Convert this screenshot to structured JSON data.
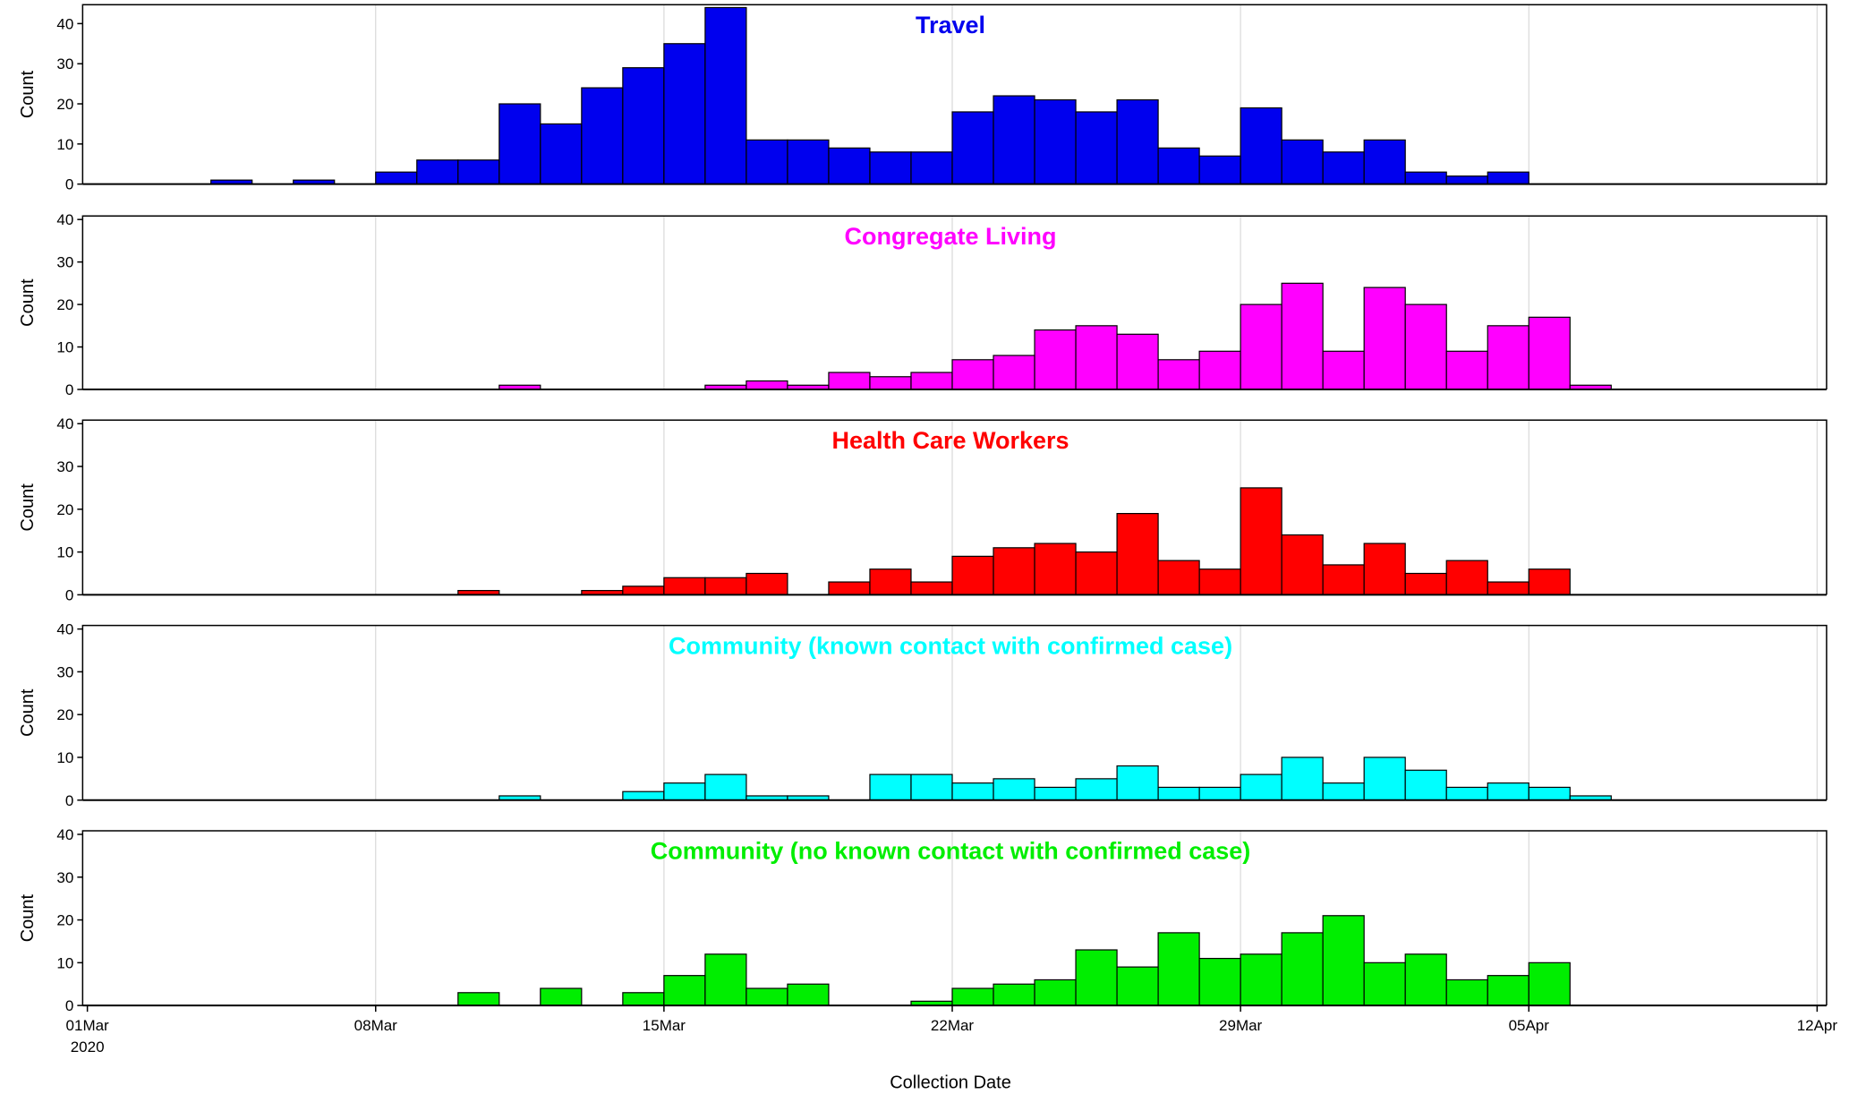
{
  "chart_data": {
    "type": "bar",
    "xlabel": "Collection Date",
    "ylabel": "Count",
    "ylim": [
      0,
      40
    ],
    "yticks": [
      0,
      10,
      20,
      30,
      40
    ],
    "grid": "vertical gridlines at x tick dates",
    "x_domain": [
      "2020-03-01",
      "2020-04-12"
    ],
    "x_ticks": [
      {
        "date": "2020-03-01",
        "label": "01Mar",
        "sublabel": "2020"
      },
      {
        "date": "2020-03-08",
        "label": "08Mar"
      },
      {
        "date": "2020-03-15",
        "label": "15Mar"
      },
      {
        "date": "2020-03-22",
        "label": "22Mar"
      },
      {
        "date": "2020-03-29",
        "label": "29Mar"
      },
      {
        "date": "2020-04-05",
        "label": "05Apr"
      },
      {
        "date": "2020-04-12",
        "label": "12Apr"
      }
    ],
    "panels": [
      {
        "title": "Travel",
        "color": "#0000ee",
        "bars": [
          {
            "date": "2020-03-04",
            "value": 1
          },
          {
            "date": "2020-03-06",
            "value": 1
          },
          {
            "date": "2020-03-08",
            "value": 3
          },
          {
            "date": "2020-03-09",
            "value": 6
          },
          {
            "date": "2020-03-10",
            "value": 6
          },
          {
            "date": "2020-03-11",
            "value": 20
          },
          {
            "date": "2020-03-12",
            "value": 15
          },
          {
            "date": "2020-03-13",
            "value": 24
          },
          {
            "date": "2020-03-14",
            "value": 29
          },
          {
            "date": "2020-03-15",
            "value": 35
          },
          {
            "date": "2020-03-16",
            "value": 44
          },
          {
            "date": "2020-03-17",
            "value": 11
          },
          {
            "date": "2020-03-18",
            "value": 11
          },
          {
            "date": "2020-03-19",
            "value": 9
          },
          {
            "date": "2020-03-20",
            "value": 8
          },
          {
            "date": "2020-03-21",
            "value": 8
          },
          {
            "date": "2020-03-22",
            "value": 18
          },
          {
            "date": "2020-03-23",
            "value": 22
          },
          {
            "date": "2020-03-24",
            "value": 21
          },
          {
            "date": "2020-03-25",
            "value": 18
          },
          {
            "date": "2020-03-26",
            "value": 21
          },
          {
            "date": "2020-03-27",
            "value": 9
          },
          {
            "date": "2020-03-28",
            "value": 7
          },
          {
            "date": "2020-03-29",
            "value": 19
          },
          {
            "date": "2020-03-30",
            "value": 11
          },
          {
            "date": "2020-03-31",
            "value": 8
          },
          {
            "date": "2020-04-01",
            "value": 11
          },
          {
            "date": "2020-04-02",
            "value": 3
          },
          {
            "date": "2020-04-03",
            "value": 2
          },
          {
            "date": "2020-04-04",
            "value": 3
          }
        ]
      },
      {
        "title": "Congregate Living",
        "color": "#ff00ff",
        "bars": [
          {
            "date": "2020-03-11",
            "value": 1
          },
          {
            "date": "2020-03-16",
            "value": 1
          },
          {
            "date": "2020-03-17",
            "value": 2
          },
          {
            "date": "2020-03-18",
            "value": 1
          },
          {
            "date": "2020-03-19",
            "value": 4
          },
          {
            "date": "2020-03-20",
            "value": 3
          },
          {
            "date": "2020-03-21",
            "value": 4
          },
          {
            "date": "2020-03-22",
            "value": 7
          },
          {
            "date": "2020-03-23",
            "value": 8
          },
          {
            "date": "2020-03-24",
            "value": 14
          },
          {
            "date": "2020-03-25",
            "value": 15
          },
          {
            "date": "2020-03-26",
            "value": 13
          },
          {
            "date": "2020-03-27",
            "value": 7
          },
          {
            "date": "2020-03-28",
            "value": 9
          },
          {
            "date": "2020-03-29",
            "value": 20
          },
          {
            "date": "2020-03-30",
            "value": 25
          },
          {
            "date": "2020-03-31",
            "value": 9
          },
          {
            "date": "2020-04-01",
            "value": 24
          },
          {
            "date": "2020-04-02",
            "value": 20
          },
          {
            "date": "2020-04-03",
            "value": 9
          },
          {
            "date": "2020-04-04",
            "value": 15
          },
          {
            "date": "2020-04-05",
            "value": 17
          },
          {
            "date": "2020-04-06",
            "value": 1
          }
        ]
      },
      {
        "title": "Health Care Workers",
        "color": "#ff0000",
        "bars": [
          {
            "date": "2020-03-10",
            "value": 1
          },
          {
            "date": "2020-03-13",
            "value": 1
          },
          {
            "date": "2020-03-14",
            "value": 2
          },
          {
            "date": "2020-03-15",
            "value": 4
          },
          {
            "date": "2020-03-16",
            "value": 4
          },
          {
            "date": "2020-03-17",
            "value": 5
          },
          {
            "date": "2020-03-19",
            "value": 3
          },
          {
            "date": "2020-03-20",
            "value": 6
          },
          {
            "date": "2020-03-21",
            "value": 3
          },
          {
            "date": "2020-03-22",
            "value": 9
          },
          {
            "date": "2020-03-23",
            "value": 11
          },
          {
            "date": "2020-03-24",
            "value": 12
          },
          {
            "date": "2020-03-25",
            "value": 10
          },
          {
            "date": "2020-03-26",
            "value": 19
          },
          {
            "date": "2020-03-27",
            "value": 8
          },
          {
            "date": "2020-03-28",
            "value": 6
          },
          {
            "date": "2020-03-29",
            "value": 25
          },
          {
            "date": "2020-03-30",
            "value": 14
          },
          {
            "date": "2020-03-31",
            "value": 7
          },
          {
            "date": "2020-04-01",
            "value": 12
          },
          {
            "date": "2020-04-02",
            "value": 5
          },
          {
            "date": "2020-04-03",
            "value": 8
          },
          {
            "date": "2020-04-04",
            "value": 3
          },
          {
            "date": "2020-04-05",
            "value": 6
          }
        ]
      },
      {
        "title": "Community (known contact with confirmed case)",
        "color": "#00ffff",
        "bars": [
          {
            "date": "2020-03-11",
            "value": 1
          },
          {
            "date": "2020-03-14",
            "value": 2
          },
          {
            "date": "2020-03-15",
            "value": 4
          },
          {
            "date": "2020-03-16",
            "value": 6
          },
          {
            "date": "2020-03-17",
            "value": 1
          },
          {
            "date": "2020-03-18",
            "value": 1
          },
          {
            "date": "2020-03-20",
            "value": 6
          },
          {
            "date": "2020-03-21",
            "value": 6
          },
          {
            "date": "2020-03-22",
            "value": 4
          },
          {
            "date": "2020-03-23",
            "value": 5
          },
          {
            "date": "2020-03-24",
            "value": 3
          },
          {
            "date": "2020-03-25",
            "value": 5
          },
          {
            "date": "2020-03-26",
            "value": 8
          },
          {
            "date": "2020-03-27",
            "value": 3
          },
          {
            "date": "2020-03-28",
            "value": 3
          },
          {
            "date": "2020-03-29",
            "value": 6
          },
          {
            "date": "2020-03-30",
            "value": 10
          },
          {
            "date": "2020-03-31",
            "value": 4
          },
          {
            "date": "2020-04-01",
            "value": 10
          },
          {
            "date": "2020-04-02",
            "value": 7
          },
          {
            "date": "2020-04-03",
            "value": 3
          },
          {
            "date": "2020-04-04",
            "value": 4
          },
          {
            "date": "2020-04-05",
            "value": 3
          },
          {
            "date": "2020-04-06",
            "value": 1
          }
        ]
      },
      {
        "title": "Community (no known contact with confirmed case)",
        "color": "#00ee00",
        "bars": [
          {
            "date": "2020-03-10",
            "value": 3
          },
          {
            "date": "2020-03-12",
            "value": 4
          },
          {
            "date": "2020-03-14",
            "value": 3
          },
          {
            "date": "2020-03-15",
            "value": 7
          },
          {
            "date": "2020-03-16",
            "value": 12
          },
          {
            "date": "2020-03-17",
            "value": 4
          },
          {
            "date": "2020-03-18",
            "value": 5
          },
          {
            "date": "2020-03-21",
            "value": 1
          },
          {
            "date": "2020-03-22",
            "value": 4
          },
          {
            "date": "2020-03-23",
            "value": 5
          },
          {
            "date": "2020-03-24",
            "value": 6
          },
          {
            "date": "2020-03-25",
            "value": 13
          },
          {
            "date": "2020-03-26",
            "value": 9
          },
          {
            "date": "2020-03-27",
            "value": 17
          },
          {
            "date": "2020-03-28",
            "value": 11
          },
          {
            "date": "2020-03-29",
            "value": 12
          },
          {
            "date": "2020-03-30",
            "value": 17
          },
          {
            "date": "2020-03-31",
            "value": 21
          },
          {
            "date": "2020-04-01",
            "value": 10
          },
          {
            "date": "2020-04-02",
            "value": 12
          },
          {
            "date": "2020-04-03",
            "value": 6
          },
          {
            "date": "2020-04-04",
            "value": 7
          },
          {
            "date": "2020-04-05",
            "value": 10
          }
        ]
      }
    ]
  }
}
